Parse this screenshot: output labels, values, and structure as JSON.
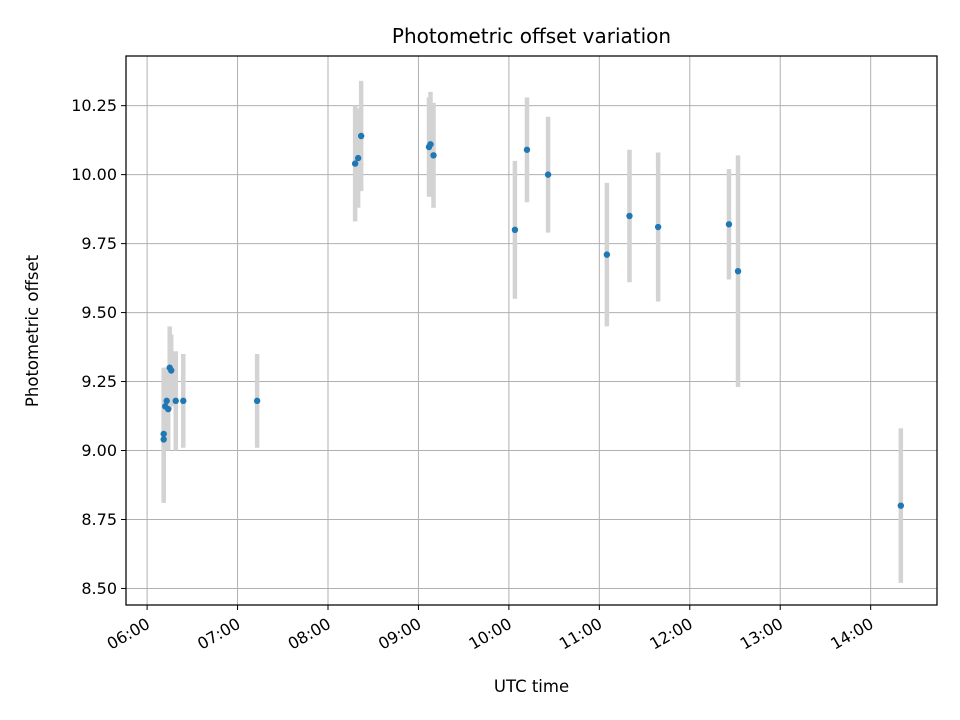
{
  "chart_data": {
    "type": "scatter",
    "title": "Photometric offset variation",
    "xlabel": "UTC time",
    "ylabel": "Photometric offset",
    "x_unit": "UTC time (HH:MM)",
    "xlim": [
      "05:46",
      "14:44"
    ],
    "ylim": [
      8.44,
      10.43
    ],
    "x_ticks": [
      "06:00",
      "07:00",
      "08:00",
      "09:00",
      "10:00",
      "11:00",
      "12:00",
      "13:00",
      "14:00"
    ],
    "y_ticks": [
      "8.50",
      "8.75",
      "9.00",
      "9.25",
      "9.50",
      "9.75",
      "10.00",
      "10.25"
    ],
    "grid": true,
    "marker_color": "#1f77b4",
    "errorbar_color": "#d3d3d3",
    "points": [
      {
        "x": "06:11",
        "y": 9.04,
        "err": 0.23
      },
      {
        "x": "06:11",
        "y": 9.06,
        "err": 0.24
      },
      {
        "x": "06:12",
        "y": 9.16,
        "err": 0.14
      },
      {
        "x": "06:13",
        "y": 9.18,
        "err": 0.12
      },
      {
        "x": "06:14",
        "y": 9.15,
        "err": 0.15
      },
      {
        "x": "06:15",
        "y": 9.3,
        "err": 0.15
      },
      {
        "x": "06:16",
        "y": 9.29,
        "err": 0.13
      },
      {
        "x": "06:19",
        "y": 9.18,
        "err": 0.18
      },
      {
        "x": "06:24",
        "y": 9.18,
        "err": 0.17
      },
      {
        "x": "07:13",
        "y": 9.18,
        "err": 0.17
      },
      {
        "x": "08:18",
        "y": 10.04,
        "err": 0.21
      },
      {
        "x": "08:20",
        "y": 10.06,
        "err": 0.18
      },
      {
        "x": "08:22",
        "y": 10.14,
        "err": 0.2
      },
      {
        "x": "09:07",
        "y": 10.1,
        "err": 0.18
      },
      {
        "x": "09:08",
        "y": 10.11,
        "err": 0.19
      },
      {
        "x": "09:10",
        "y": 10.07,
        "err": 0.19
      },
      {
        "x": "10:04",
        "y": 9.8,
        "err": 0.25
      },
      {
        "x": "10:12",
        "y": 10.09,
        "err": 0.19
      },
      {
        "x": "10:26",
        "y": 10.0,
        "err": 0.21
      },
      {
        "x": "11:05",
        "y": 9.71,
        "err": 0.26
      },
      {
        "x": "11:20",
        "y": 9.85,
        "err": 0.24
      },
      {
        "x": "11:39",
        "y": 9.81,
        "err": 0.27
      },
      {
        "x": "12:26",
        "y": 9.82,
        "err": 0.2
      },
      {
        "x": "12:32",
        "y": 9.65,
        "err": 0.42
      },
      {
        "x": "14:20",
        "y": 8.8,
        "err": 0.28
      }
    ]
  }
}
